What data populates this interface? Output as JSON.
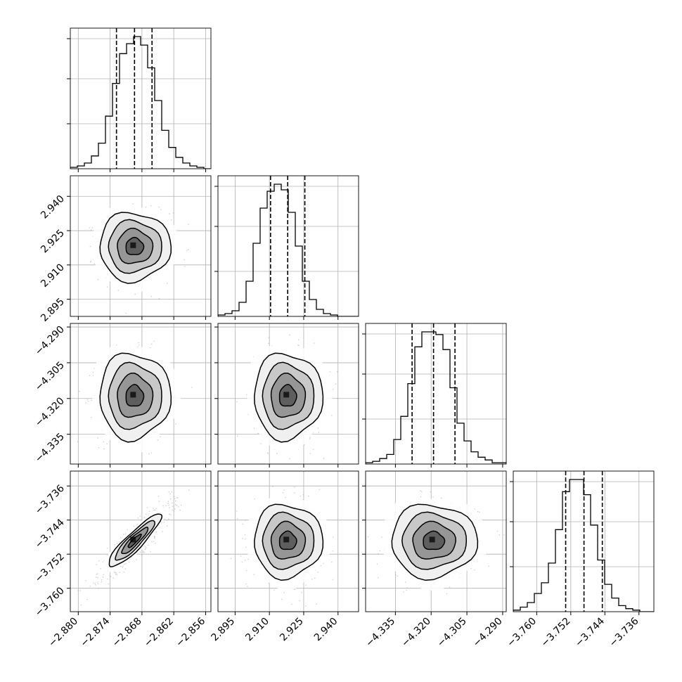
{
  "chart_data": {
    "type": "corner",
    "parameter_count": 4,
    "grid": true,
    "quantile_lines": "dashed",
    "params": [
      {
        "ticks": [
          -2.88,
          -2.874,
          -2.868,
          -2.862,
          -2.856
        ],
        "tick_labels": [
          "−2.880",
          "−2.874",
          "−2.868",
          "−2.862",
          "−2.856"
        ],
        "range": [
          -2.8815,
          -2.855
        ],
        "quantiles": [
          -2.8728,
          -2.8694,
          -2.8661
        ],
        "hist_counts": [
          1,
          2,
          4,
          9,
          18,
          37,
          60,
          81,
          88,
          93,
          87,
          71,
          48,
          27,
          15,
          8,
          4,
          2,
          1,
          0
        ]
      },
      {
        "ticks": [
          2.895,
          2.91,
          2.925,
          2.94
        ],
        "tick_labels": [
          "2.895",
          "2.910",
          "2.925",
          "2.940"
        ],
        "range": [
          2.8875,
          2.949
        ],
        "quantiles": [
          2.9105,
          2.918,
          2.9255
        ],
        "hist_counts": [
          1,
          2,
          4,
          10,
          25,
          52,
          77,
          89,
          94,
          90,
          74,
          50,
          25,
          12,
          5,
          2,
          1,
          0,
          0,
          0
        ]
      },
      {
        "ticks": [
          -4.335,
          -4.32,
          -4.305,
          -4.29
        ],
        "tick_labels": [
          "−4.335",
          "−4.320",
          "−4.305",
          "−4.290"
        ],
        "range": [
          -4.3475,
          -4.2885
        ],
        "quantiles": [
          -4.328,
          -4.319,
          -4.31
        ],
        "hist_counts": [
          1,
          2,
          4,
          7,
          18,
          35,
          59,
          86,
          97,
          97,
          95,
          84,
          56,
          30,
          17,
          9,
          5,
          3,
          1,
          1
        ]
      },
      {
        "ticks": [
          -3.76,
          -3.752,
          -3.744,
          -3.736
        ],
        "tick_labels": [
          "−3.760",
          "−3.752",
          "−3.744",
          "−3.736"
        ],
        "range": [
          -3.7655,
          -3.7325
        ],
        "quantiles": [
          -3.7532,
          -3.7489,
          -3.7446
        ],
        "hist_counts": [
          1,
          3,
          6,
          12,
          19,
          32,
          54,
          79,
          87,
          87,
          77,
          57,
          34,
          18,
          9,
          4,
          2,
          1,
          0,
          0
        ]
      }
    ],
    "correlations": [
      [
        1,
        0,
        0,
        0.9
      ],
      [
        0,
        1,
        0,
        0
      ],
      [
        0,
        0,
        1,
        0
      ],
      [
        0.9,
        0,
        0,
        1
      ]
    ]
  }
}
